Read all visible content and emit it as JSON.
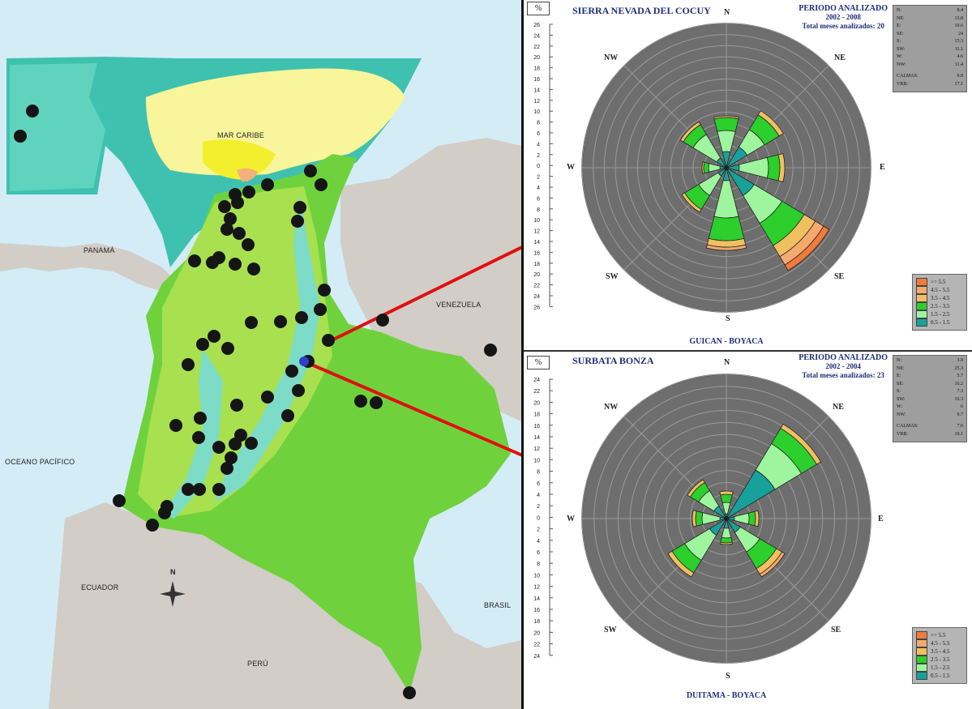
{
  "map": {
    "labels": {
      "caribbean": "MAR CARIBE",
      "panama": "PANAMÁ",
      "venezuela": "VENEZUELA",
      "pacific": "OCEANO PACÍFICO",
      "ecuador": "ECUADOR",
      "brasil": "BRASIL",
      "peru": "PERÚ",
      "north": "N"
    },
    "colors": {
      "sea": "#d4ecf6",
      "land": "#d2cdc7",
      "colombia": "#6fd23c",
      "highland": "#a8e050",
      "teal": "#3fc1b0",
      "yellow": "#f8f59a",
      "station": "#151515",
      "arrow": "#e01010"
    }
  },
  "roses": [
    {
      "id": "top",
      "pct_label": "%",
      "station": "SIERRA NEVADA DEL COCUY",
      "period_title": "PERIODO ANALIZADO",
      "period": "2002 - 2008",
      "months": "Total meses analizados: 20",
      "place": "GUICAN - BOYACA",
      "y_ticks_up": [
        "26",
        "24",
        "22",
        "20",
        "18",
        "16",
        "14",
        "12",
        "10",
        "8",
        "6",
        "4",
        "2",
        "0"
      ],
      "y_ticks_down": [
        "2",
        "4",
        "6",
        "8",
        "10",
        "12",
        "14",
        "16",
        "18",
        "20",
        "22",
        "24",
        "26"
      ],
      "directions": {
        "N": "N",
        "NE": "NE",
        "E": "E",
        "SE": "SE",
        "S": "S",
        "SW": "SW",
        "W": "W",
        "NW": "NW"
      },
      "stats": [
        {
          "k": "N:",
          "v": "8.4"
        },
        {
          "k": "NE:",
          "v": "13.8"
        },
        {
          "k": "E:",
          "v": "10.6"
        },
        {
          "k": "SE:",
          "v": "24"
        },
        {
          "k": "S:",
          "v": "15.3"
        },
        {
          "k": "SW:",
          "v": "11.1"
        },
        {
          "k": "W:",
          "v": "4.6"
        },
        {
          "k": "NW:",
          "v": "11.4"
        }
      ],
      "calms": {
        "k": "CALMAS:",
        "v": "0.8"
      },
      "vrb": {
        "k": "VRB:",
        "v": "17.1"
      },
      "legend": [
        {
          "label": ">= 5.5",
          "color": "#f07b3a"
        },
        {
          "label": "4.5 - 5.5",
          "color": "#f5a96f"
        },
        {
          "label": "3.5 - 4.5",
          "color": "#f0c060"
        },
        {
          "label": "2.5 - 3.5",
          "color": "#2ccf2c"
        },
        {
          "label": "1.5 - 2.5",
          "color": "#9ef59e"
        },
        {
          "label": "0.5 - 1.5",
          "color": "#17a19a"
        }
      ]
    },
    {
      "id": "bottom",
      "pct_label": "%",
      "station": "SURBATA BONZA",
      "period_title": "PERIODO ANALIZADO",
      "period": "2002 - 2004",
      "months": "Total meses analizados: 23",
      "place": "DUITAMA - BOYACA",
      "y_ticks_up": [
        "24",
        "22",
        "20",
        "18",
        "16",
        "14",
        "12",
        "10",
        "8",
        "6",
        "4",
        "2",
        "0"
      ],
      "y_ticks_down": [
        "2",
        "4",
        "6",
        "8",
        "10",
        "12",
        "14",
        "16",
        "18",
        "20",
        "22",
        "24"
      ],
      "directions": {
        "N": "N",
        "NE": "NE",
        "E": "E",
        "SE": "SE",
        "S": "S",
        "SW": "SW",
        "W": "W",
        "NW": "NW"
      },
      "stats": [
        {
          "k": "N:",
          "v": "3.9"
        },
        {
          "k": "NE:",
          "v": "25.3"
        },
        {
          "k": "E:",
          "v": "5.7"
        },
        {
          "k": "SE:",
          "v": "16.2"
        },
        {
          "k": "S:",
          "v": "7.3"
        },
        {
          "k": "SW:",
          "v": "16.3"
        },
        {
          "k": "W:",
          "v": "6"
        },
        {
          "k": "NW:",
          "v": "9.7"
        }
      ],
      "calms": {
        "k": "CALMAS:",
        "v": "7.6"
      },
      "vrb": {
        "k": "VRB:",
        "v": "10.1"
      },
      "legend": [
        {
          "label": ">= 5.5",
          "color": "#f07b3a"
        },
        {
          "label": "4.5 - 5.5",
          "color": "#f5a96f"
        },
        {
          "label": "3.5 - 4.5",
          "color": "#f0c060"
        },
        {
          "label": "2.5 - 3.5",
          "color": "#2ccf2c"
        },
        {
          "label": "1.5 - 2.5",
          "color": "#9ef59e"
        },
        {
          "label": "0.5 - 1.5",
          "color": "#17a19a"
        }
      ]
    }
  ]
}
